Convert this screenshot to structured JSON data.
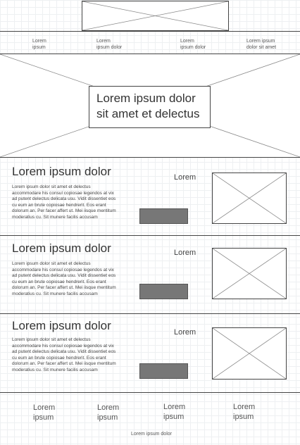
{
  "nav": {
    "items": [
      "Lorem\nipsum",
      "Lorem\nipsum dolor",
      "Lorem\nipsum dolor",
      "Lorem ipsum\ndolor sit amet"
    ]
  },
  "hero": {
    "title": "Lorem ipsum dolor\nsit amet et delectus"
  },
  "sections": [
    {
      "title": "Lorem ipsum dolor",
      "body": "Lorem ipsum dolor sit amet et delectus accommodare his consul copiosae legendos at vix ad putent delectus delicata usu. Vidit dissentiet eos cu eum an brute copiosae hendrerit. Eos erant dolorum an. Per facer affert ut. Mei iisque mentitum moderatius cu. Sit munere facilis accusam",
      "side_label": "Lorem"
    },
    {
      "title": "Lorem ipsum dolor",
      "body": "Lorem ipsum dolor sit amet et delectus accommodare his consul copiosae legendos at vix ad putent delectus delicata usu. Vidit dissentiet eos cu eum an brute copiosae hendrerit. Eos erant dolorum an. Per facer affert ut. Mei iisque mentitum moderatius cu. Sit munere facilis accusam",
      "side_label": "Lorem"
    },
    {
      "title": "Lorem ipsum dolor",
      "body": "Lorem ipsum dolor sit amet et delectus accommodare his consul copiosae legendos at vix ad putent delectus delicata usu. Vidit dissentiet eos cu eum an brute copiosae hendrerit. Eos erant dolorum an. Per facer affert ut. Mei iisque mentitum moderatius cu. Sit munere facilis accusam",
      "side_label": "Lorem"
    }
  ],
  "footer": {
    "items": [
      "Lorem\nipsum",
      "Lorem\nipsum",
      "Lorem\nipsum",
      "Lorem\nipsum"
    ],
    "caption": "Lorem ipsum dolor"
  }
}
